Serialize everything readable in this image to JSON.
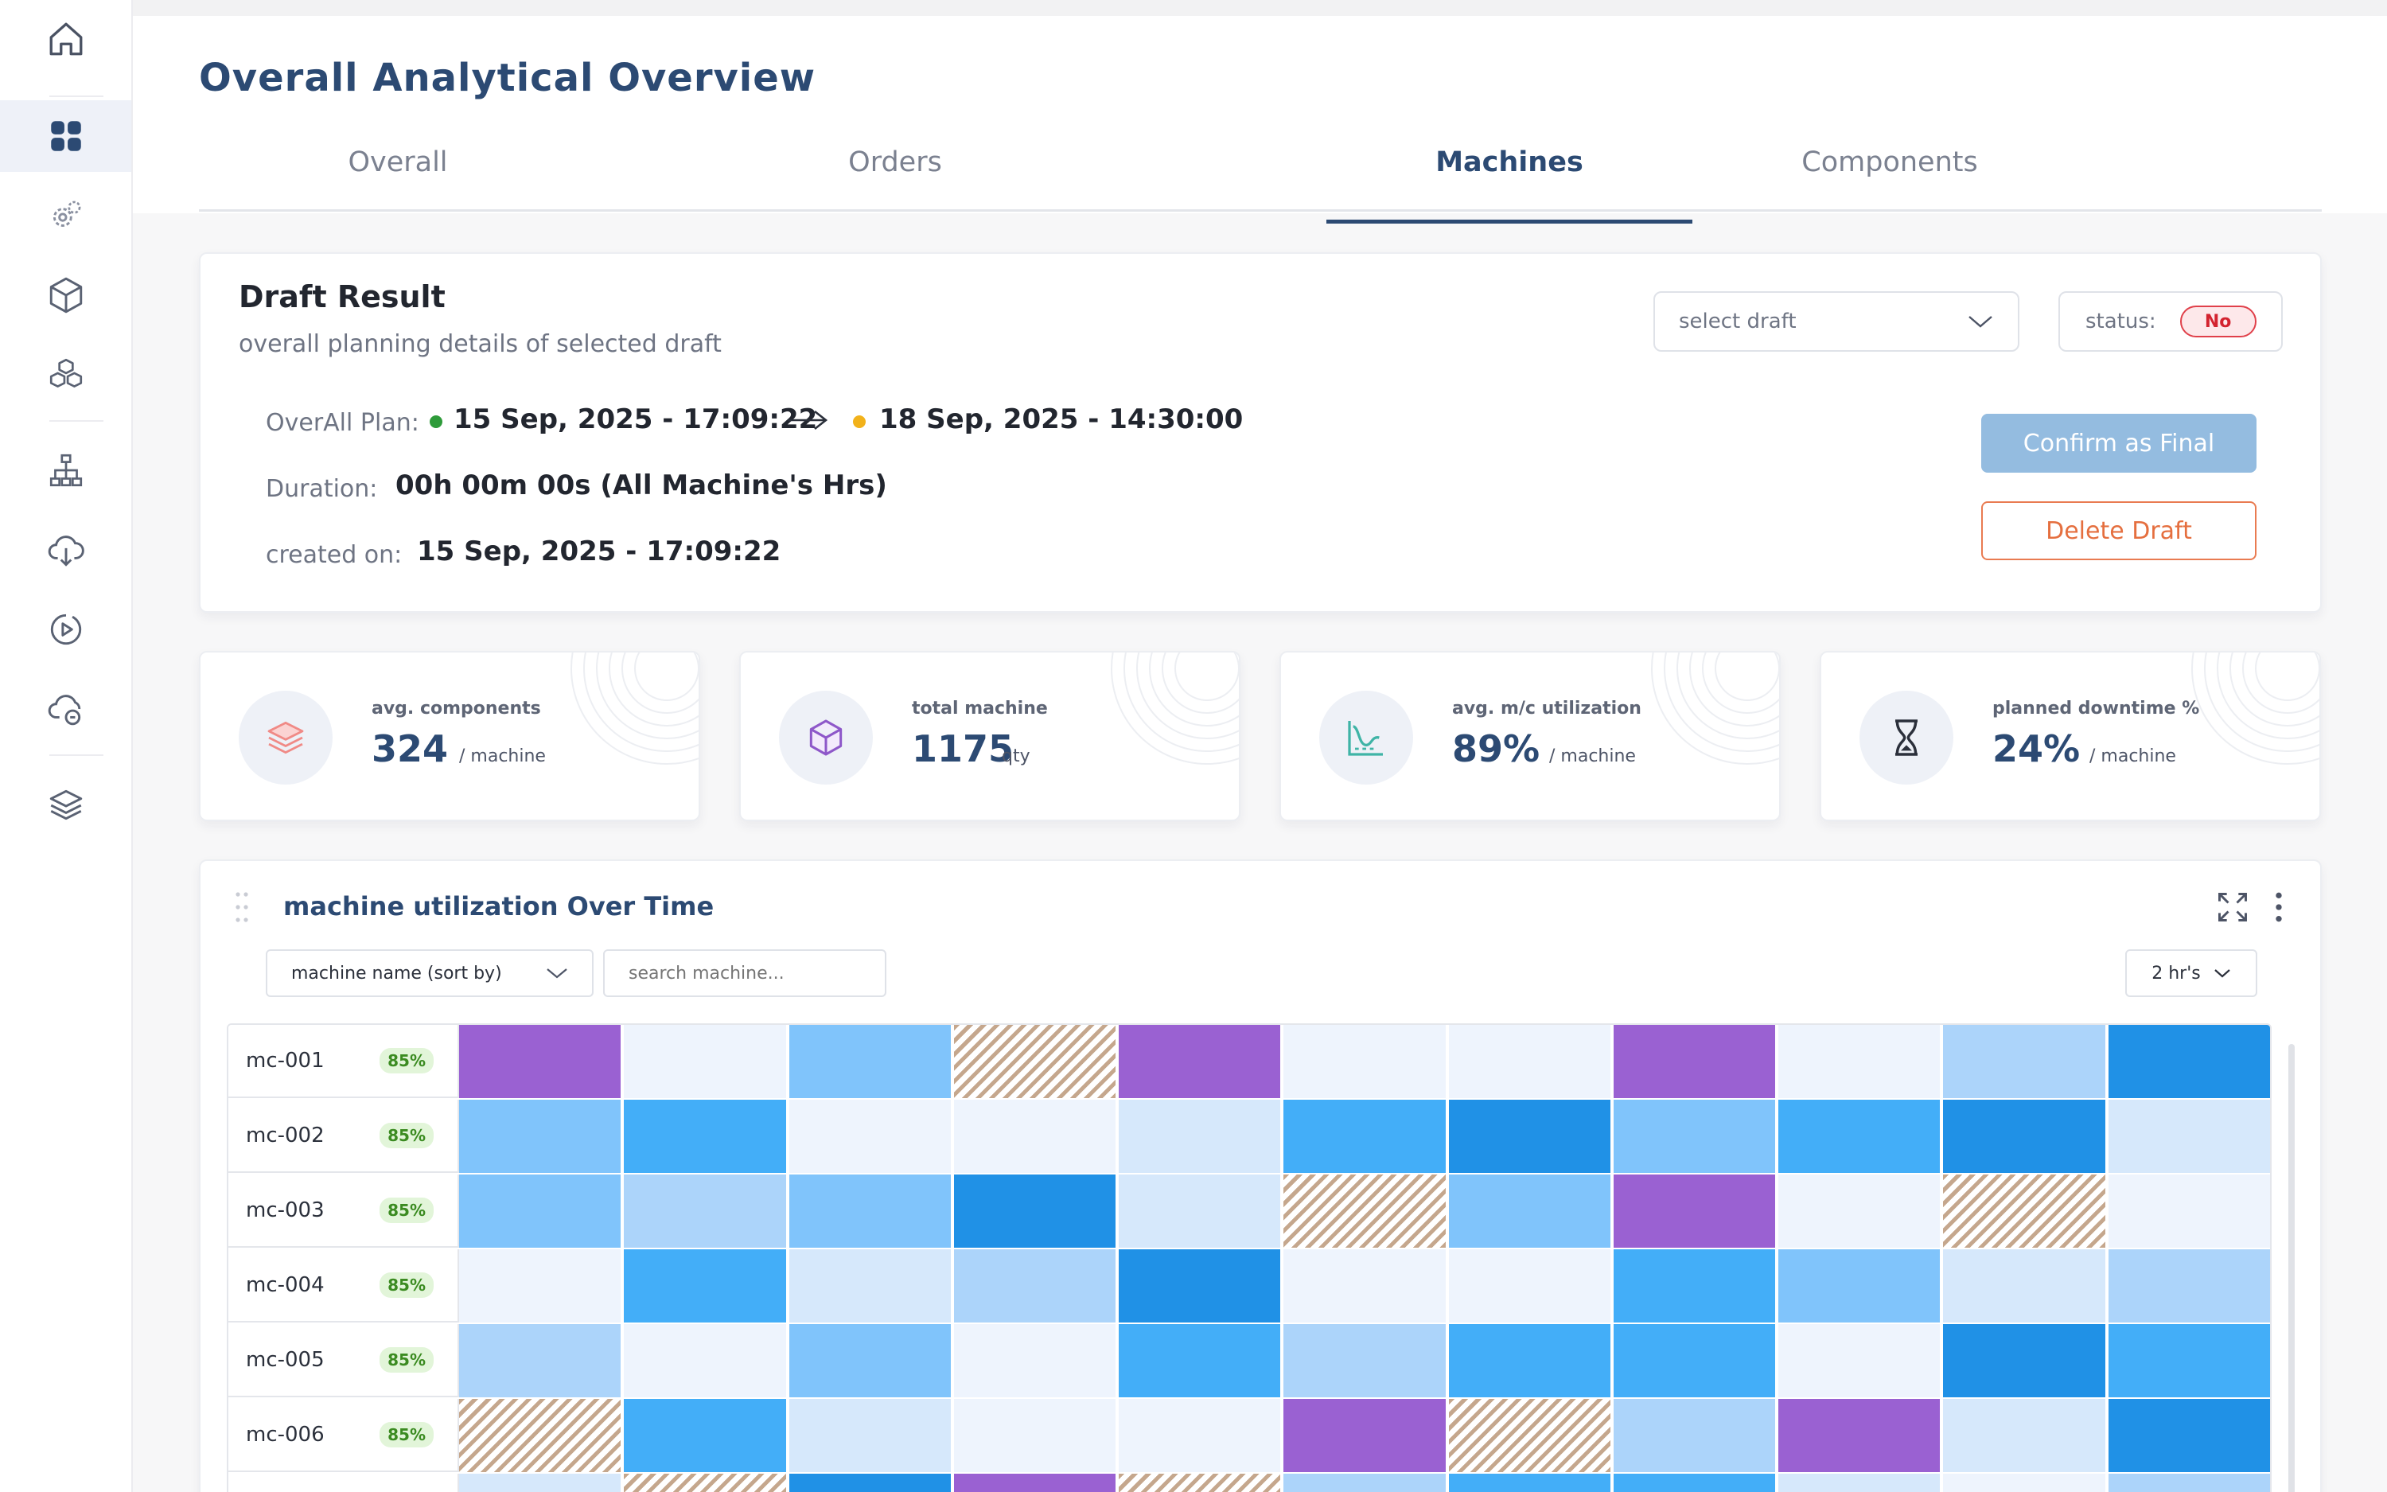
{
  "sidebar": {
    "items": [
      {
        "icon": "home-icon"
      },
      {
        "icon": "dashboard-grid-icon"
      },
      {
        "icon": "gears-icon"
      },
      {
        "icon": "box-icon"
      },
      {
        "icon": "boxes-stack-icon"
      },
      {
        "icon": "hierarchy-icon"
      },
      {
        "icon": "cloud-download-icon"
      },
      {
        "icon": "play-circle-icon"
      },
      {
        "icon": "cloud-sync-icon"
      },
      {
        "icon": "layers-icon"
      }
    ],
    "active_index": 1
  },
  "header": {
    "title": "Overall Analytical Overview",
    "tabs": [
      {
        "label": "Overall"
      },
      {
        "label": "Orders"
      },
      {
        "label": "Machines"
      },
      {
        "label": "Components"
      }
    ],
    "active_tab": "Machines"
  },
  "draft": {
    "title": "Draft Result",
    "subtitle": "overall planning details of selected draft",
    "select_placeholder": "select draft",
    "status_label": "status:",
    "status_value": "No",
    "plan_label": "OverAll Plan:",
    "plan_start": "15 Sep, 2025 - 17:09:22",
    "plan_end": "18 Sep, 2025 - 14:30:00",
    "duration_label": "Duration:",
    "duration_value": "00h 00m 00s (All Machine's Hrs)",
    "created_label": "created on:",
    "created_value": "15 Sep, 2025 - 17:09:22",
    "confirm_label": "Confirm as Final",
    "delete_label": "Delete Draft",
    "colors": {
      "start_dot": "#2e9b3a",
      "end_dot": "#f2b21b",
      "delete": "#e56f3f",
      "confirm": "#94bce0"
    }
  },
  "stats": [
    {
      "label": "avg. components",
      "value": "324",
      "unit": "/ machine",
      "icon": "layers-stack-icon"
    },
    {
      "label": "total machine",
      "value": "1175",
      "unit": "qty",
      "icon": "box-icon"
    },
    {
      "label": "avg. m/c utilization",
      "value": "89%",
      "unit": "/ machine",
      "icon": "line-chart-icon"
    },
    {
      "label": "planned downtime %",
      "value": "24%",
      "unit": "/ machine",
      "icon": "hourglass-icon"
    }
  ],
  "heatmap": {
    "title": "machine utilization Over Time",
    "sort_label": "machine name (sort by)",
    "search_placeholder": "search machine...",
    "interval_label": "2 hr's",
    "legend_states": [
      "v1",
      "v2",
      "v3",
      "v4",
      "v5",
      "v6",
      "pur",
      "hatch"
    ],
    "rows": [
      {
        "name": "mc-001",
        "pct": "85%",
        "cells": [
          "pur",
          "v1",
          "v4",
          "hatch",
          "pur",
          "v1",
          "v1",
          "pur",
          "v1",
          "v3",
          "v6"
        ]
      },
      {
        "name": "mc-002",
        "pct": "85%",
        "cells": [
          "v4",
          "v5",
          "v1",
          "v1",
          "v2",
          "v5",
          "v6",
          "v4",
          "v5",
          "v6",
          "v2"
        ]
      },
      {
        "name": "mc-003",
        "pct": "85%",
        "cells": [
          "v4",
          "v3",
          "v4",
          "v6",
          "v2",
          "hatch",
          "v4",
          "pur",
          "v1",
          "hatch",
          "v1"
        ]
      },
      {
        "name": "mc-004",
        "pct": "85%",
        "cells": [
          "v1",
          "v5",
          "v2",
          "v3",
          "v6",
          "v1",
          "v1",
          "v5",
          "v4",
          "v2",
          "v3"
        ]
      },
      {
        "name": "mc-005",
        "pct": "85%",
        "cells": [
          "v3",
          "v1",
          "v4",
          "v1",
          "v5",
          "v3",
          "v5",
          "v5",
          "v1",
          "v6",
          "v5"
        ]
      },
      {
        "name": "mc-006",
        "pct": "85%",
        "cells": [
          "hatch",
          "v5",
          "v2",
          "v1",
          "v1",
          "pur",
          "hatch",
          "v3",
          "pur",
          "v2",
          "v6"
        ]
      },
      {
        "name": "",
        "pct": "",
        "cells": [
          "v2",
          "hatch",
          "v6",
          "pur",
          "hatch",
          "v3",
          "v5",
          "v5",
          "v2",
          "v1",
          "v3"
        ]
      }
    ]
  }
}
